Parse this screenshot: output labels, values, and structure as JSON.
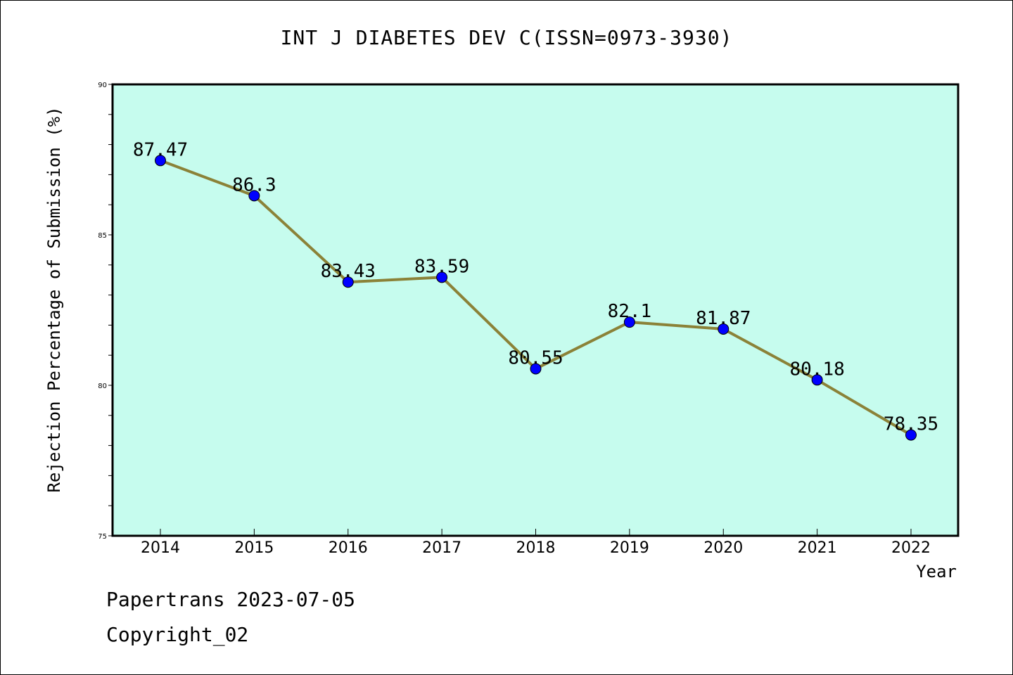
{
  "chart_data": {
    "type": "line",
    "title": "INT J DIABETES DEV C(ISSN=0973-3930)",
    "xlabel": "Year",
    "ylabel": "Rejection Percentage of Submission (%)",
    "categories": [
      "2014",
      "2015",
      "2016",
      "2017",
      "2018",
      "2019",
      "2020",
      "2021",
      "2022"
    ],
    "values": [
      87.47,
      86.3,
      83.43,
      83.59,
      80.55,
      82.1,
      81.87,
      80.18,
      78.35
    ],
    "data_labels": [
      "87.47",
      "86.3",
      "83.43",
      "83.59",
      "80.55",
      "82.1",
      "81.87",
      "80.18",
      "78.35"
    ],
    "ylim": [
      75,
      90
    ],
    "yticks": [
      75,
      80,
      85,
      90
    ],
    "ytick_labels": [
      "75",
      "80",
      "85",
      "90"
    ],
    "minor_tick_step": 1,
    "grid": false,
    "colors": {
      "plot_background": "#c6fcee",
      "line": "#8b8238",
      "marker": "#0000ff"
    }
  },
  "footer": {
    "line1": "Papertrans 2023-07-05",
    "line2": "Copyright_02"
  }
}
